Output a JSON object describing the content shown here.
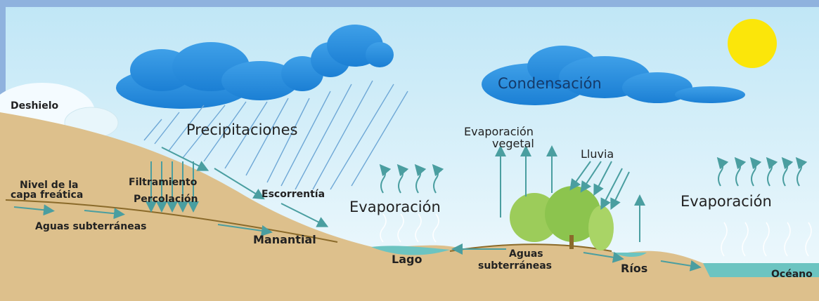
{
  "labels": [
    "Deshielo",
    "Precipitaciones",
    "Condensación",
    "Evaporación",
    "vegetal",
    "Lluvia",
    "Nivel de la",
    "capa freática",
    "Filtramiento",
    "Percolación",
    "Escorrentía",
    "Evaporación",
    "Evaporación",
    "Aguas subterráneas",
    "Manantial",
    "Lago",
    "Aguas",
    "subterráneas",
    "Ríos",
    "Océano"
  ]
}
